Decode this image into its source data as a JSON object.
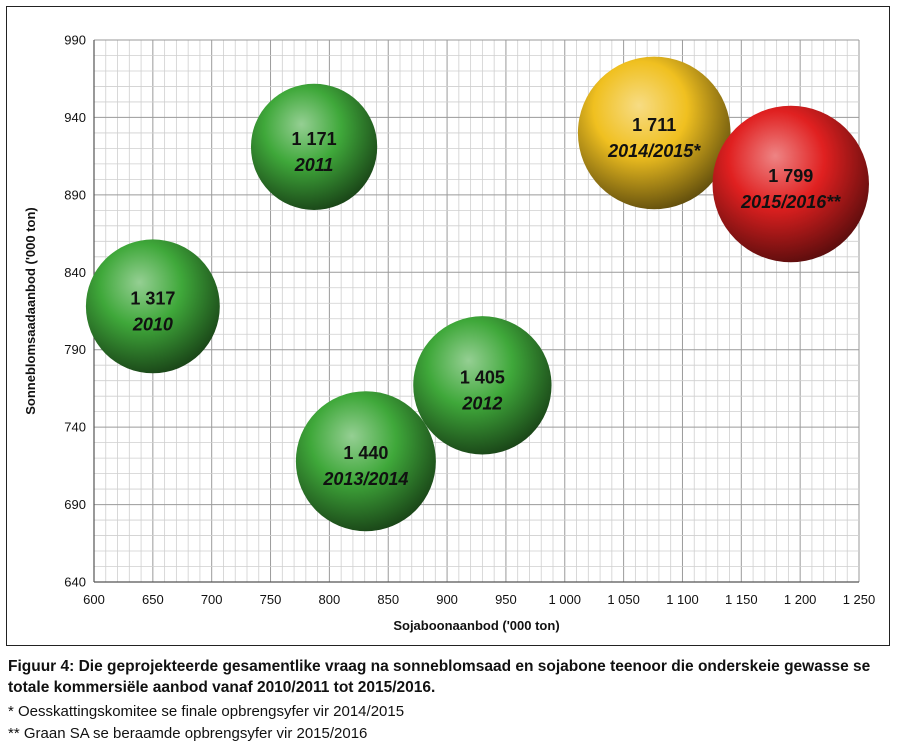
{
  "chart_data": {
    "type": "bubble",
    "title": "",
    "xlabel": "Sojaboonaanbod ('000 ton)",
    "ylabel": "Sonneblomsaadaanbod ('000 ton)",
    "xlim": [
      600,
      1250
    ],
    "ylim": [
      640,
      990
    ],
    "x_ticks": [
      "600",
      "650",
      "700",
      "750",
      "800",
      "850",
      "900",
      "950",
      "1 000",
      "1 050",
      "1 100",
      "1 150",
      "1 200",
      "1 250"
    ],
    "y_ticks": [
      "640",
      "690",
      "740",
      "790",
      "840",
      "890",
      "940",
      "990"
    ],
    "grid": true,
    "points": [
      {
        "season": "2010",
        "x": 650,
        "y": 818,
        "size": 1317,
        "value_label": "1 317",
        "color": "#3fa83a"
      },
      {
        "season": "2011",
        "x": 787,
        "y": 921,
        "size": 1171,
        "value_label": "1 171",
        "color": "#3fa83a"
      },
      {
        "season": "2012",
        "x": 930,
        "y": 767,
        "size": 1405,
        "value_label": "1 405",
        "color": "#3fa83a"
      },
      {
        "season": "2013/2014",
        "x": 831,
        "y": 718,
        "size": 1440,
        "value_label": "1 440",
        "color": "#3fa83a"
      },
      {
        "season": "2014/2015*",
        "x": 1076,
        "y": 930,
        "size": 1711,
        "value_label": "1 711",
        "color": "#f0c020"
      },
      {
        "season": "2015/2016**",
        "x": 1192,
        "y": 897,
        "size": 1799,
        "value_label": "1 799",
        "color": "#e02020"
      }
    ]
  },
  "caption": {
    "title": "Figuur 4: Die geprojekteerde gesamentlike vraag na sonneblomsaad en sojabone teenoor die onderskeie gewasse se totale kommersiële aanbod vanaf 2010/2011 tot 2015/2016.",
    "note1": "* Oesskattingskomitee se finale opbrengsyfer vir 2014/2015",
    "note2": "** Graan SA se beraamde opbrengsyfer vir 2015/2016"
  }
}
